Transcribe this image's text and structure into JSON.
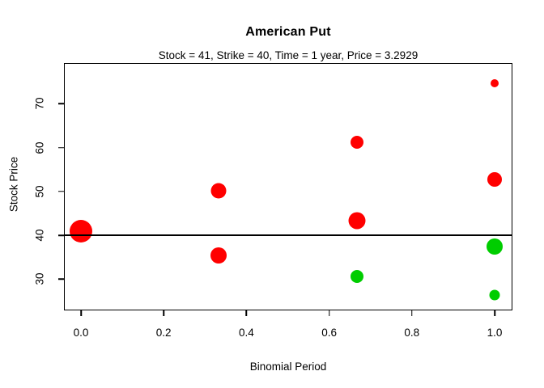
{
  "chart_data": {
    "type": "scatter",
    "title": "American Put",
    "subtitle": "Stock = 41, Strike = 40, Time = 1 year, Price = 3.2929",
    "xlabel": "Binomial Period",
    "ylabel": "Stock Price",
    "xlim": [
      0,
      1
    ],
    "ylim": [
      22.9,
      79.3
    ],
    "grid": "off",
    "x_ticks": [
      {
        "value": 0.0,
        "label": "0.0"
      },
      {
        "value": 0.2,
        "label": "0.2"
      },
      {
        "value": 0.4,
        "label": "0.4"
      },
      {
        "value": 0.6,
        "label": "0.6"
      },
      {
        "value": 0.8,
        "label": "0.8"
      },
      {
        "value": 1.0,
        "label": "1.0"
      }
    ],
    "y_ticks": [
      {
        "value": 30,
        "label": "30"
      },
      {
        "value": 40,
        "label": "40"
      },
      {
        "value": 50,
        "label": "50"
      },
      {
        "value": 60,
        "label": "60"
      },
      {
        "value": 70,
        "label": "70"
      }
    ],
    "reference_line": {
      "y": 40,
      "meaning": "strike"
    },
    "colors": {
      "red": "#ff0000",
      "green": "#00cd00"
    },
    "points": [
      {
        "x": 0.0,
        "y": 41.0,
        "color": "red",
        "radius": 14
      },
      {
        "x": 0.333,
        "y": 50.07,
        "color": "red",
        "radius": 9.5
      },
      {
        "x": 0.333,
        "y": 35.41,
        "color": "red",
        "radius": 10
      },
      {
        "x": 0.667,
        "y": 61.14,
        "color": "red",
        "radius": 8
      },
      {
        "x": 0.667,
        "y": 43.25,
        "color": "red",
        "radius": 10.5
      },
      {
        "x": 0.667,
        "y": 30.59,
        "color": "green",
        "radius": 8
      },
      {
        "x": 1.0,
        "y": 74.68,
        "color": "red",
        "radius": 5
      },
      {
        "x": 1.0,
        "y": 52.81,
        "color": "red",
        "radius": 9
      },
      {
        "x": 1.0,
        "y": 37.35,
        "color": "green",
        "radius": 10
      },
      {
        "x": 1.0,
        "y": 26.42,
        "color": "green",
        "radius": 6.5
      }
    ]
  }
}
